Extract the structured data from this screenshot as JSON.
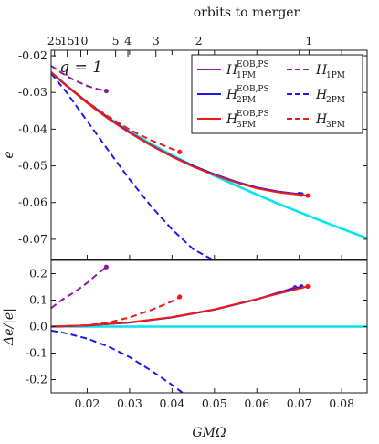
{
  "chart_data": {
    "type": "line",
    "xlabel": "GMΩ",
    "xlim": [
      0.0115,
      0.086
    ],
    "x_ticks": [
      0.02,
      0.03,
      0.04,
      0.05,
      0.06,
      0.07,
      0.08
    ],
    "x_tick_labels": [
      "0.02",
      "0.03",
      "0.04",
      "0.05",
      "0.06",
      "0.07",
      "0.08"
    ],
    "top_axis": {
      "label": "orbits to merger",
      "ticks": [
        {
          "label": "25",
          "x": 0.0123
        },
        {
          "label": "15",
          "x": 0.0153
        },
        {
          "label": "10",
          "x": 0.0185
        },
        {
          "label": "5",
          "x": 0.0267
        },
        {
          "label": "4",
          "x": 0.0296
        },
        {
          "label": "3",
          "x": 0.0362
        },
        {
          "label": "2",
          "x": 0.0463
        },
        {
          "label": "1",
          "x": 0.0723
        }
      ]
    },
    "annotation": {
      "text": "q = 1",
      "x": 0.0135,
      "y": -0.0245
    },
    "panels": [
      {
        "name": "top",
        "ylabel": "e",
        "ylim": [
          -0.0755,
          -0.0185
        ],
        "y_ticks": [
          -0.07,
          -0.06,
          -0.05,
          -0.04,
          -0.03,
          -0.02
        ],
        "y_tick_labels": [
          "-0.07",
          "-0.06",
          "-0.05",
          "-0.04",
          "-0.03",
          "-0.02"
        ],
        "series": [
          {
            "key": "nr",
            "color": "#00e5ee",
            "dash": false,
            "endpoint": false,
            "x": [
              0.0115,
              0.015,
              0.02,
              0.025,
              0.03,
              0.035,
              0.04,
              0.045,
              0.05,
              0.055,
              0.06,
              0.065,
              0.07,
              0.075,
              0.08,
              0.086
            ],
            "y": [
              -0.0245,
              -0.028,
              -0.0327,
              -0.0369,
              -0.0406,
              -0.044,
              -0.0471,
              -0.05,
              -0.0527,
              -0.0553,
              -0.0578,
              -0.0603,
              -0.0626,
              -0.0649,
              -0.0671,
              -0.0697
            ]
          },
          {
            "key": "eob1",
            "color": "#8b1a9b",
            "dash": false,
            "endpoint": true,
            "x": [
              0.0115,
              0.015,
              0.02,
              0.025,
              0.03,
              0.035,
              0.04,
              0.045,
              0.05,
              0.055,
              0.06,
              0.065,
              0.07
            ],
            "y": [
              -0.0245,
              -0.028,
              -0.0327,
              -0.037,
              -0.0409,
              -0.0443,
              -0.0474,
              -0.05,
              -0.0523,
              -0.0543,
              -0.0559,
              -0.057,
              -0.0577
            ]
          },
          {
            "key": "eob2",
            "color": "#1a1aee",
            "dash": false,
            "endpoint": true,
            "x": [
              0.0115,
              0.015,
              0.02,
              0.025,
              0.03,
              0.035,
              0.04,
              0.045,
              0.05,
              0.055,
              0.06,
              0.065,
              0.0705
            ],
            "y": [
              -0.0245,
              -0.028,
              -0.0327,
              -0.037,
              -0.0409,
              -0.0443,
              -0.0474,
              -0.05,
              -0.0523,
              -0.0543,
              -0.0559,
              -0.057,
              -0.0578
            ]
          },
          {
            "key": "eob3",
            "color": "#ee1a1a",
            "dash": false,
            "endpoint": true,
            "x": [
              0.0115,
              0.015,
              0.02,
              0.025,
              0.03,
              0.035,
              0.04,
              0.045,
              0.05,
              0.055,
              0.06,
              0.065,
              0.072
            ],
            "y": [
              -0.0245,
              -0.0281,
              -0.0329,
              -0.0372,
              -0.041,
              -0.0444,
              -0.0475,
              -0.0502,
              -0.0525,
              -0.0545,
              -0.0561,
              -0.0572,
              -0.0581
            ]
          },
          {
            "key": "pm1",
            "color": "#8b1a9b",
            "dash": true,
            "endpoint": true,
            "x": [
              0.0115,
              0.014,
              0.017,
              0.02,
              0.0225,
              0.0245
            ],
            "y": [
              -0.0227,
              -0.0247,
              -0.0267,
              -0.0282,
              -0.0291,
              -0.0296
            ]
          },
          {
            "key": "pm2",
            "color": "#1a1aee",
            "dash": true,
            "endpoint": false,
            "x": [
              0.0115,
              0.015,
              0.02,
              0.025,
              0.03,
              0.035,
              0.04,
              0.045,
              0.0495
            ],
            "y": [
              -0.0248,
              -0.0298,
              -0.0378,
              -0.0458,
              -0.0537,
              -0.0609,
              -0.0673,
              -0.0727,
              -0.0755
            ]
          },
          {
            "key": "pm3",
            "color": "#ee1a1a",
            "dash": true,
            "endpoint": true,
            "x": [
              0.0115,
              0.015,
              0.02,
              0.025,
              0.03,
              0.035,
              0.04,
              0.0418
            ],
            "y": [
              -0.0245,
              -0.028,
              -0.0326,
              -0.0366,
              -0.0401,
              -0.043,
              -0.0454,
              -0.0462
            ]
          }
        ]
      },
      {
        "name": "bottom",
        "ylabel": "Δe/|e|",
        "ylim": [
          -0.25,
          0.25
        ],
        "y_ticks": [
          -0.2,
          -0.1,
          0.0,
          0.1,
          0.2
        ],
        "y_tick_labels": [
          "-0.2",
          "-0.1",
          "0.0",
          "0.1",
          "0.2"
        ],
        "series": [
          {
            "key": "nr",
            "color": "#00e5ee",
            "dash": false,
            "endpoint": false,
            "x": [
              0.0115,
              0.086
            ],
            "y": [
              0.0,
              0.0
            ]
          },
          {
            "key": "eob1",
            "color": "#8b1a9b",
            "dash": false,
            "endpoint": true,
            "x": [
              0.0115,
              0.02,
              0.03,
              0.04,
              0.05,
              0.06,
              0.069
            ],
            "y": [
              0.0,
              0.004,
              0.015,
              0.035,
              0.064,
              0.103,
              0.148
            ]
          },
          {
            "key": "eob2",
            "color": "#1a1aee",
            "dash": false,
            "endpoint": true,
            "x": [
              0.0115,
              0.02,
              0.03,
              0.04,
              0.05,
              0.06,
              0.0705
            ],
            "y": [
              0.0,
              0.004,
              0.015,
              0.035,
              0.064,
              0.103,
              0.151
            ]
          },
          {
            "key": "eob3",
            "color": "#ee1a1a",
            "dash": false,
            "endpoint": true,
            "x": [
              0.0115,
              0.02,
              0.03,
              0.04,
              0.05,
              0.06,
              0.072
            ],
            "y": [
              0.0,
              0.005,
              0.016,
              0.036,
              0.065,
              0.104,
              0.152
            ]
          },
          {
            "key": "pm1",
            "color": "#8b1a9b",
            "dash": true,
            "endpoint": true,
            "x": [
              0.0115,
              0.014,
              0.017,
              0.02,
              0.0225,
              0.0245
            ],
            "y": [
              0.07,
              0.1,
              0.13,
              0.165,
              0.2,
              0.225
            ]
          },
          {
            "key": "pm2",
            "color": "#1a1aee",
            "dash": true,
            "endpoint": false,
            "x": [
              0.0115,
              0.015,
              0.02,
              0.025,
              0.03,
              0.035,
              0.04,
              0.0425
            ],
            "y": [
              -0.015,
              -0.025,
              -0.045,
              -0.075,
              -0.115,
              -0.165,
              -0.22,
              -0.25
            ]
          },
          {
            "key": "pm3",
            "color": "#ee1a1a",
            "dash": true,
            "endpoint": true,
            "x": [
              0.0115,
              0.02,
              0.025,
              0.03,
              0.035,
              0.04,
              0.0418
            ],
            "y": [
              0.0,
              0.005,
              0.015,
              0.035,
              0.062,
              0.095,
              0.112
            ]
          }
        ]
      }
    ],
    "legend": {
      "placement": "top-right",
      "entries": [
        {
          "key": "eob1",
          "main": "H",
          "sub": "1PM",
          "sup": "EOB,PS",
          "color": "#8b1a9b",
          "dash": false
        },
        {
          "key": "pm1",
          "main": "H",
          "sub": "1PM",
          "sup": "",
          "color": "#8b1a9b",
          "dash": true
        },
        {
          "key": "eob2",
          "main": "H",
          "sub": "2PM",
          "sup": "EOB,PS",
          "color": "#1a1aee",
          "dash": false
        },
        {
          "key": "pm2",
          "main": "H",
          "sub": "2PM",
          "sup": "",
          "color": "#1a1aee",
          "dash": true
        },
        {
          "key": "eob3",
          "main": "H",
          "sub": "3PM",
          "sup": "EOB,PS",
          "color": "#ee1a1a",
          "dash": false
        },
        {
          "key": "pm3",
          "main": "H",
          "sub": "3PM",
          "sup": "",
          "color": "#ee1a1a",
          "dash": true
        }
      ]
    }
  }
}
